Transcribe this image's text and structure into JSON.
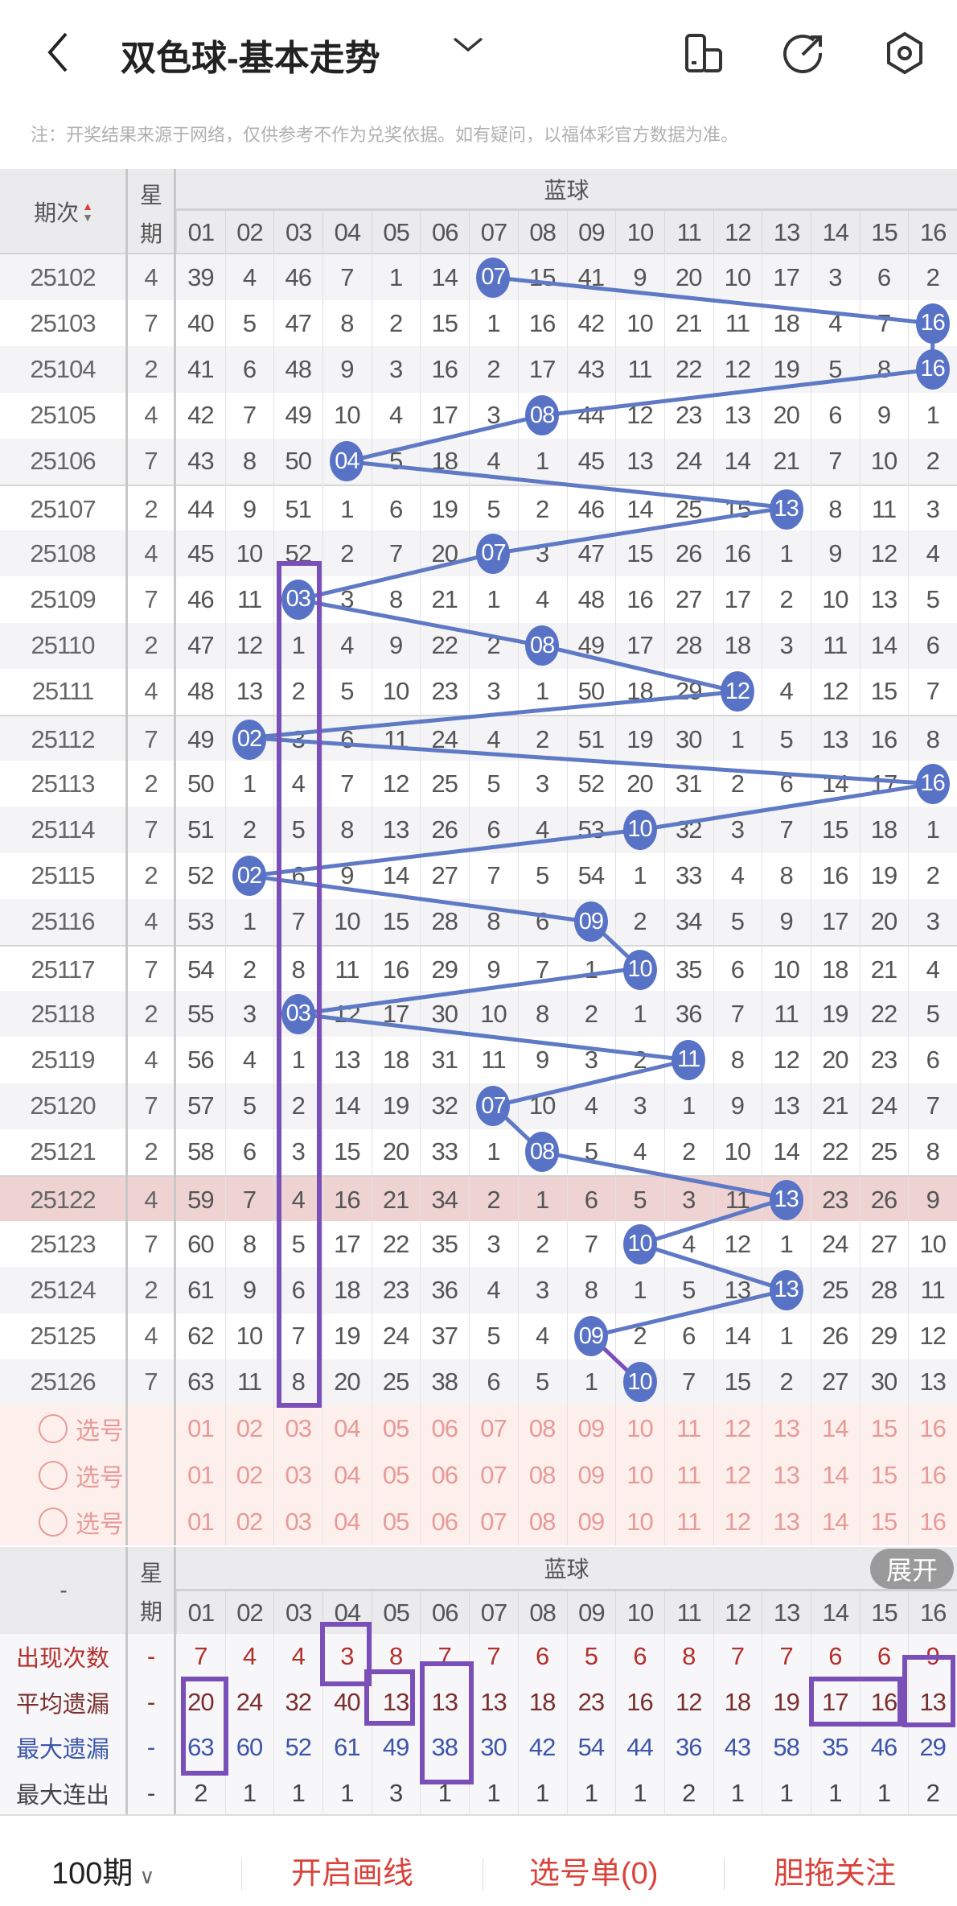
{
  "header": {
    "title": "双色球-基本走势",
    "back_icon": "chevron-left-icon",
    "dropdown_icon": "chevron-down-icon",
    "icons": [
      "device-icon",
      "share-icon",
      "settings-icon"
    ]
  },
  "note": "注：开奖结果来源于网络，仅供参考不作为兑奖依据。如有疑问，以福体彩官方数据为准。",
  "table_header": {
    "period": "期次",
    "weekday_top": "星",
    "weekday_bottom": "期",
    "group": "蓝球",
    "columns": [
      "01",
      "02",
      "03",
      "04",
      "05",
      "06",
      "07",
      "08",
      "09",
      "10",
      "11",
      "12",
      "13",
      "14",
      "15",
      "16"
    ]
  },
  "colors": {
    "ball": "#5872c6",
    "line": "#5f79c4",
    "annotation": "#7a4fb8",
    "highlight_row": "#efd3d3",
    "pick": "#e89a98",
    "accent": "#d9433b"
  },
  "rows": [
    {
      "period": "25102",
      "weekday": "4",
      "ball": "07",
      "cells": [
        "39",
        "4",
        "46",
        "7",
        "1",
        "14",
        "07",
        "15",
        "41",
        "9",
        "20",
        "10",
        "17",
        "3",
        "6",
        "2"
      ]
    },
    {
      "period": "25103",
      "weekday": "7",
      "ball": "16",
      "cells": [
        "40",
        "5",
        "47",
        "8",
        "2",
        "15",
        "1",
        "16",
        "42",
        "10",
        "21",
        "11",
        "18",
        "4",
        "7",
        "16"
      ]
    },
    {
      "period": "25104",
      "weekday": "2",
      "ball": "16",
      "cells": [
        "41",
        "6",
        "48",
        "9",
        "3",
        "16",
        "2",
        "17",
        "43",
        "11",
        "22",
        "12",
        "19",
        "5",
        "8",
        "16"
      ]
    },
    {
      "period": "25105",
      "weekday": "4",
      "ball": "08",
      "cells": [
        "42",
        "7",
        "49",
        "10",
        "4",
        "17",
        "3",
        "08",
        "44",
        "12",
        "23",
        "13",
        "20",
        "6",
        "9",
        "1"
      ]
    },
    {
      "period": "25106",
      "weekday": "7",
      "ball": "04",
      "cells": [
        "43",
        "8",
        "50",
        "04",
        "5",
        "18",
        "4",
        "1",
        "45",
        "13",
        "24",
        "14",
        "21",
        "7",
        "10",
        "2"
      ]
    },
    {
      "period": "25107",
      "weekday": "2",
      "ball": "13",
      "cells": [
        "44",
        "9",
        "51",
        "1",
        "6",
        "19",
        "5",
        "2",
        "46",
        "14",
        "25",
        "15",
        "13",
        "8",
        "11",
        "3"
      ]
    },
    {
      "period": "25108",
      "weekday": "4",
      "ball": "07",
      "cells": [
        "45",
        "10",
        "52",
        "2",
        "7",
        "20",
        "07",
        "3",
        "47",
        "15",
        "26",
        "16",
        "1",
        "9",
        "12",
        "4"
      ]
    },
    {
      "period": "25109",
      "weekday": "7",
      "ball": "03",
      "cells": [
        "46",
        "11",
        "03",
        "3",
        "8",
        "21",
        "1",
        "4",
        "48",
        "16",
        "27",
        "17",
        "2",
        "10",
        "13",
        "5"
      ]
    },
    {
      "period": "25110",
      "weekday": "2",
      "ball": "08",
      "cells": [
        "47",
        "12",
        "1",
        "4",
        "9",
        "22",
        "2",
        "08",
        "49",
        "17",
        "28",
        "18",
        "3",
        "11",
        "14",
        "6"
      ]
    },
    {
      "period": "25111",
      "weekday": "4",
      "ball": "12",
      "cells": [
        "48",
        "13",
        "2",
        "5",
        "10",
        "23",
        "3",
        "1",
        "50",
        "18",
        "29",
        "12",
        "4",
        "12",
        "15",
        "7"
      ]
    },
    {
      "period": "25112",
      "weekday": "7",
      "ball": "02",
      "cells": [
        "49",
        "02",
        "3",
        "6",
        "11",
        "24",
        "4",
        "2",
        "51",
        "19",
        "30",
        "1",
        "5",
        "13",
        "16",
        "8"
      ]
    },
    {
      "period": "25113",
      "weekday": "2",
      "ball": "16",
      "cells": [
        "50",
        "1",
        "4",
        "7",
        "12",
        "25",
        "5",
        "3",
        "52",
        "20",
        "31",
        "2",
        "6",
        "14",
        "17",
        "16"
      ]
    },
    {
      "period": "25114",
      "weekday": "7",
      "ball": "10",
      "cells": [
        "51",
        "2",
        "5",
        "8",
        "13",
        "26",
        "6",
        "4",
        "53",
        "10",
        "32",
        "3",
        "7",
        "15",
        "18",
        "1"
      ]
    },
    {
      "period": "25115",
      "weekday": "2",
      "ball": "02",
      "cells": [
        "52",
        "02",
        "6",
        "9",
        "14",
        "27",
        "7",
        "5",
        "54",
        "1",
        "33",
        "4",
        "8",
        "16",
        "19",
        "2"
      ]
    },
    {
      "period": "25116",
      "weekday": "4",
      "ball": "09",
      "cells": [
        "53",
        "1",
        "7",
        "10",
        "15",
        "28",
        "8",
        "6",
        "09",
        "2",
        "34",
        "5",
        "9",
        "17",
        "20",
        "3"
      ]
    },
    {
      "period": "25117",
      "weekday": "7",
      "ball": "10",
      "cells": [
        "54",
        "2",
        "8",
        "11",
        "16",
        "29",
        "9",
        "7",
        "1",
        "10",
        "35",
        "6",
        "10",
        "18",
        "21",
        "4"
      ]
    },
    {
      "period": "25118",
      "weekday": "2",
      "ball": "03",
      "cells": [
        "55",
        "3",
        "03",
        "12",
        "17",
        "30",
        "10",
        "8",
        "2",
        "1",
        "36",
        "7",
        "11",
        "19",
        "22",
        "5"
      ]
    },
    {
      "period": "25119",
      "weekday": "4",
      "ball": "11",
      "cells": [
        "56",
        "4",
        "1",
        "13",
        "18",
        "31",
        "11",
        "9",
        "3",
        "2",
        "11",
        "8",
        "12",
        "20",
        "23",
        "6"
      ]
    },
    {
      "period": "25120",
      "weekday": "7",
      "ball": "07",
      "cells": [
        "57",
        "5",
        "2",
        "14",
        "19",
        "32",
        "07",
        "10",
        "4",
        "3",
        "1",
        "9",
        "13",
        "21",
        "24",
        "7"
      ]
    },
    {
      "period": "25121",
      "weekday": "2",
      "ball": "08",
      "cells": [
        "58",
        "6",
        "3",
        "15",
        "20",
        "33",
        "1",
        "08",
        "5",
        "4",
        "2",
        "10",
        "14",
        "22",
        "25",
        "8"
      ]
    },
    {
      "period": "25122",
      "weekday": "4",
      "ball": "13",
      "highlight": true,
      "cells": [
        "59",
        "7",
        "4",
        "16",
        "21",
        "34",
        "2",
        "1",
        "6",
        "5",
        "3",
        "11",
        "13",
        "23",
        "26",
        "9"
      ]
    },
    {
      "period": "25123",
      "weekday": "7",
      "ball": "10",
      "cells": [
        "60",
        "8",
        "5",
        "17",
        "22",
        "35",
        "3",
        "2",
        "7",
        "10",
        "4",
        "12",
        "1",
        "24",
        "27",
        "10"
      ]
    },
    {
      "period": "25124",
      "weekday": "2",
      "ball": "13",
      "cells": [
        "61",
        "9",
        "6",
        "18",
        "23",
        "36",
        "4",
        "3",
        "8",
        "1",
        "5",
        "13",
        "13",
        "25",
        "28",
        "11"
      ]
    },
    {
      "period": "25125",
      "weekday": "4",
      "ball": "09",
      "cells": [
        "62",
        "10",
        "7",
        "19",
        "24",
        "37",
        "5",
        "4",
        "09",
        "2",
        "6",
        "14",
        "1",
        "26",
        "29",
        "12"
      ]
    },
    {
      "period": "25126",
      "weekday": "7",
      "ball": "10",
      "cells": [
        "63",
        "11",
        "8",
        "20",
        "25",
        "38",
        "6",
        "5",
        "1",
        "10",
        "7",
        "15",
        "2",
        "27",
        "30",
        "13"
      ]
    }
  ],
  "pick_rows": [
    {
      "label": "选号",
      "numbers": [
        "01",
        "02",
        "03",
        "04",
        "05",
        "06",
        "07",
        "08",
        "09",
        "10",
        "11",
        "12",
        "13",
        "14",
        "15",
        "16"
      ]
    },
    {
      "label": "选号",
      "numbers": [
        "01",
        "02",
        "03",
        "04",
        "05",
        "06",
        "07",
        "08",
        "09",
        "10",
        "11",
        "12",
        "13",
        "14",
        "15",
        "16"
      ]
    },
    {
      "label": "选号",
      "numbers": [
        "01",
        "02",
        "03",
        "04",
        "05",
        "06",
        "07",
        "08",
        "09",
        "10",
        "11",
        "12",
        "13",
        "14",
        "15",
        "16"
      ]
    }
  ],
  "stats_header": {
    "period": "-",
    "weekday_top": "星",
    "weekday_bottom": "期",
    "group": "蓝球",
    "expand": "展开",
    "columns": [
      "01",
      "02",
      "03",
      "04",
      "05",
      "06",
      "07",
      "08",
      "09",
      "10",
      "11",
      "12",
      "13",
      "14",
      "15",
      "16"
    ]
  },
  "stats": [
    {
      "label": "出现次数",
      "weekday": "-",
      "color": "#b3302b",
      "values": [
        "7",
        "4",
        "4",
        "3",
        "8",
        "7",
        "7",
        "6",
        "5",
        "6",
        "8",
        "7",
        "7",
        "6",
        "6",
        "9"
      ]
    },
    {
      "label": "平均遗漏",
      "weekday": "-",
      "color": "#7a2e2e",
      "values": [
        "20",
        "24",
        "32",
        "40",
        "13",
        "13",
        "13",
        "18",
        "23",
        "16",
        "12",
        "18",
        "19",
        "17",
        "16",
        "13"
      ]
    },
    {
      "label": "最大遗漏",
      "weekday": "-",
      "color": "#3d56aa",
      "values": [
        "63",
        "60",
        "52",
        "61",
        "49",
        "38",
        "30",
        "42",
        "54",
        "44",
        "36",
        "43",
        "58",
        "35",
        "46",
        "29"
      ]
    },
    {
      "label": "最大连出",
      "weekday": "-",
      "color": "#444444",
      "values": [
        "2",
        "1",
        "1",
        "1",
        "3",
        "1",
        "1",
        "1",
        "1",
        "1",
        "2",
        "1",
        "1",
        "1",
        "1",
        "2"
      ]
    }
  ],
  "bottom_bar": {
    "periods": "100期",
    "draw_lines": "开启画线",
    "pick_list": "选号单(0)",
    "follow": "胆拖关注"
  }
}
